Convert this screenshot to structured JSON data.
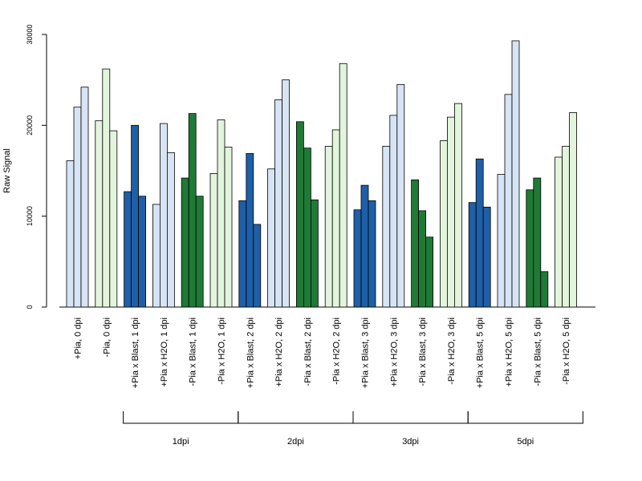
{
  "chart_data": {
    "type": "bar",
    "ylabel": "Raw Signal",
    "ylim": [
      0,
      30000
    ],
    "yticks": [
      0,
      10000,
      20000,
      30000
    ],
    "categories": [
      "+Pia, 0 dpi",
      "-Pia, 0 dpi",
      "+Pia x Blast, 1 dpi",
      "+Pia x H2O, 1 dpi",
      "-Pia x Blast, 1 dpi",
      "-Pia x H2O, 1 dpi",
      "+Pia x Blast, 2 dpi",
      "+Pia x H2O, 2 dpi",
      "-Pia x Blast, 2 dpi",
      "-Pia x H2O, 2 dpi",
      "+Pia x Blast, 3 dpi",
      "+Pia x H2O, 3 dpi",
      "-Pia x Blast, 3 dpi",
      "-Pia x H2O, 3 dpi",
      "+Pia x Blast, 5 dpi",
      "+Pia x H2O, 5 dpi",
      "-Pia x Blast, 5 dpi",
      "-Pia x H2O, 5 dpi"
    ],
    "colors": [
      "#d6e4f5",
      "#e2f5dc",
      "#1f5fa8",
      "#d6e4f5",
      "#1f7a36",
      "#e2f5dc",
      "#1f5fa8",
      "#d6e4f5",
      "#1f7a36",
      "#e2f5dc",
      "#1f5fa8",
      "#d6e4f5",
      "#1f7a36",
      "#e2f5dc",
      "#1f5fa8",
      "#d6e4f5",
      "#1f7a36",
      "#e2f5dc"
    ],
    "replicates": [
      [
        16100,
        22000,
        24200
      ],
      [
        20500,
        26200,
        19400
      ],
      [
        12700,
        20000,
        12200
      ],
      [
        11300,
        20200,
        17000
      ],
      [
        14200,
        21300,
        12200
      ],
      [
        14700,
        20600,
        17600
      ],
      [
        11700,
        16900,
        9100
      ],
      [
        15200,
        22800,
        25000
      ],
      [
        20400,
        17500,
        11800
      ],
      [
        17700,
        19500,
        26800
      ],
      [
        10700,
        13400,
        11700
      ],
      [
        17700,
        21100,
        24500
      ],
      [
        14000,
        10600,
        7700
      ],
      [
        18300,
        20900,
        22400
      ],
      [
        11500,
        16300,
        11000
      ],
      [
        14600,
        23400,
        29300
      ],
      [
        12900,
        14200,
        3900
      ],
      [
        16500,
        17700,
        21400
      ]
    ],
    "groups": [
      {
        "label": "1dpi",
        "first": 2,
        "last": 5
      },
      {
        "label": "2dpi",
        "first": 6,
        "last": 9
      },
      {
        "label": "3dpi",
        "first": 10,
        "last": 13
      },
      {
        "label": "5dpi",
        "first": 14,
        "last": 17
      }
    ]
  }
}
